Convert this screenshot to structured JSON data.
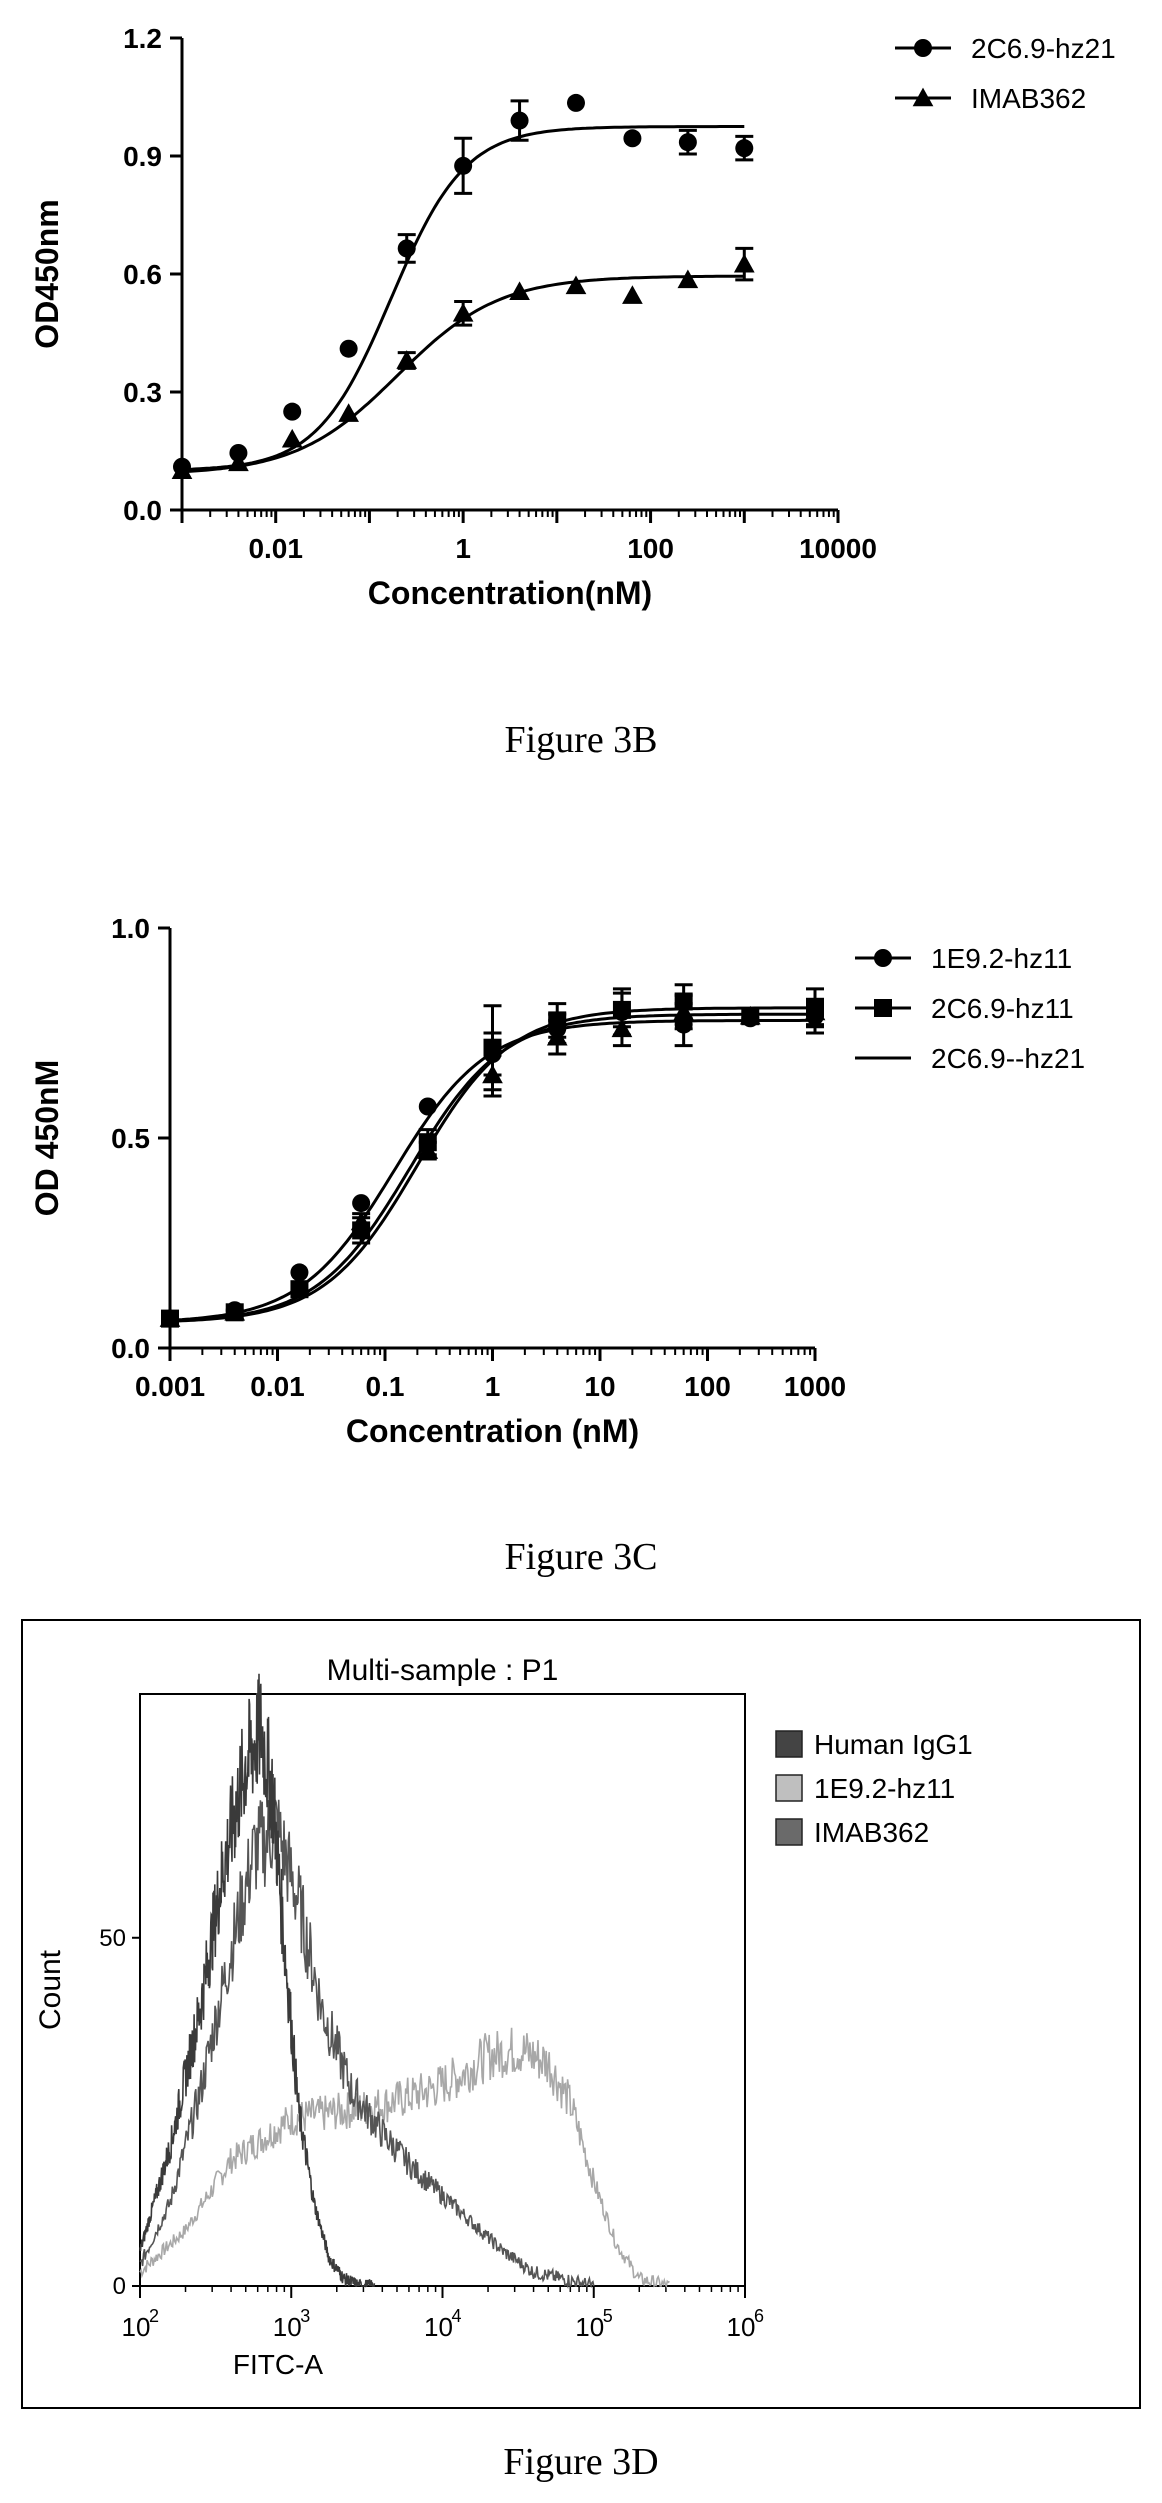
{
  "chart_data": [
    {
      "id": "fig3b",
      "type": "line",
      "caption": "Figure 3B",
      "xlabel": "Concentration(nM)",
      "ylabel": "OD450nm",
      "xscale": "log",
      "xlim": [
        0.001,
        10000
      ],
      "ylim": [
        0,
        1.2
      ],
      "xticks": [
        0.01,
        1,
        100,
        10000
      ],
      "xtick_labels": [
        "0.01",
        "1",
        "100",
        "10000"
      ],
      "yticks": [
        0,
        0.3,
        0.6,
        0.9,
        1.2
      ],
      "ytick_labels": [
        "0.0",
        "0.3",
        "0.6",
        "0.9",
        "1.2"
      ],
      "legend_position": "top-right",
      "series": [
        {
          "name": "2C6.9-hz21",
          "marker": "circle",
          "x": [
            0.001,
            0.004,
            0.015,
            0.06,
            0.25,
            1,
            4,
            16,
            64,
            250,
            1000
          ],
          "y": [
            0.11,
            0.145,
            0.25,
            0.41,
            0.665,
            0.875,
            0.99,
            1.035,
            0.945,
            0.935,
            0.92
          ],
          "err": [
            0,
            0,
            0,
            0,
            0.035,
            0.07,
            0.05,
            0,
            0,
            0.03,
            0.03
          ],
          "fit": {
            "bottom": 0.1,
            "top": 0.975,
            "ec50": 0.17,
            "hill": 1.1
          }
        },
        {
          "name": "IMAB362",
          "marker": "triangle",
          "x": [
            0.001,
            0.004,
            0.015,
            0.06,
            0.25,
            1,
            4,
            16,
            64,
            250,
            1000
          ],
          "y": [
            0.1,
            0.12,
            0.18,
            0.245,
            0.38,
            0.5,
            0.555,
            0.57,
            0.545,
            0.585,
            0.625
          ],
          "err": [
            0,
            0,
            0,
            0,
            0.02,
            0.03,
            0,
            0,
            0,
            0,
            0.04
          ],
          "fit": {
            "bottom": 0.09,
            "top": 0.595,
            "ec50": 0.2,
            "hill": 0.8
          }
        }
      ]
    },
    {
      "id": "fig3c",
      "type": "line",
      "caption": "Figure 3C",
      "xlabel": "Concentration (nM)",
      "ylabel": "OD 450nM",
      "xscale": "log",
      "xlim": [
        0.001,
        1000
      ],
      "ylim": [
        0,
        1
      ],
      "xticks": [
        0.001,
        0.01,
        0.1,
        1,
        10,
        100,
        1000
      ],
      "xtick_labels": [
        "0.001",
        "0.01",
        "0.1",
        "1",
        "10",
        "100",
        "1000"
      ],
      "yticks": [
        0,
        0.5,
        1
      ],
      "ytick_labels": [
        "0.0",
        "0.5",
        "1.0"
      ],
      "legend_position": "top-right",
      "series": [
        {
          "name": "1E9.2-hz11",
          "marker": "circle",
          "x": [
            0.001,
            0.004,
            0.016,
            0.06,
            0.25,
            1,
            4,
            16,
            60,
            250,
            1000
          ],
          "y": [
            0.07,
            0.09,
            0.18,
            0.345,
            0.575,
            0.7,
            0.76,
            0.8,
            0.77,
            0.785,
            0.79
          ],
          "err": [
            0,
            0,
            0,
            0,
            0,
            0.05,
            0.035,
            0.055,
            0.05,
            0,
            0.04
          ],
          "fit": {
            "bottom": 0.06,
            "top": 0.78,
            "ec50": 0.12,
            "hill": 1.0
          }
        },
        {
          "name": "2C6.9-hz11",
          "marker": "square",
          "x": [
            0.001,
            0.004,
            0.016,
            0.06,
            0.25,
            1,
            4,
            16,
            60,
            250,
            1000
          ],
          "y": [
            0.07,
            0.085,
            0.14,
            0.28,
            0.49,
            0.715,
            0.78,
            0.805,
            0.825,
            0.79,
            0.81
          ],
          "err": [
            0,
            0,
            0,
            0.03,
            0.03,
            0.1,
            0.04,
            0.04,
            0.04,
            0,
            0.045
          ],
          "fit": {
            "bottom": 0.06,
            "top": 0.81,
            "ec50": 0.2,
            "hill": 1.0
          }
        },
        {
          "name": "2C6.9--hz21",
          "marker": "triangle",
          "x": [
            0.001,
            0.004,
            0.016,
            0.06,
            0.25,
            1,
            4,
            16,
            60,
            250,
            1000
          ],
          "y": [
            0.07,
            0.085,
            0.15,
            0.3,
            0.47,
            0.65,
            0.74,
            0.76,
            0.8,
            0.79,
            0.8
          ],
          "err": [
            0,
            0,
            0,
            0.02,
            0.02,
            0.05,
            0.04,
            0.04,
            0.04,
            0,
            0.03
          ],
          "fit": {
            "bottom": 0.06,
            "top": 0.795,
            "ec50": 0.17,
            "hill": 1.0
          }
        }
      ]
    },
    {
      "id": "fig3d",
      "type": "area",
      "caption": "Figure 3D",
      "title": "Multi-sample : P1",
      "xlabel": "FITC-A",
      "ylabel": "Count",
      "xscale": "log",
      "xlim": [
        100,
        1000000
      ],
      "ylim": [
        0,
        85
      ],
      "xticks": [
        100,
        1000,
        10000,
        100000,
        1000000
      ],
      "xtick_labels": [
        {
          "base": "10",
          "exp": "2"
        },
        {
          "base": "10",
          "exp": "3"
        },
        {
          "base": "10",
          "exp": "4"
        },
        {
          "base": "10",
          "exp": "5"
        },
        {
          "base": "10",
          "exp": "6"
        }
      ],
      "yticks": [
        0,
        50
      ],
      "ytick_labels": [
        "0",
        "50"
      ],
      "legend_position": "right",
      "series": [
        {
          "name": "Human IgG1",
          "color": "#3a3a3a",
          "legend_color": "#444444",
          "x": [
            2.0,
            2.2,
            2.4,
            2.55,
            2.7,
            2.8,
            2.88,
            2.95,
            3.05,
            3.15,
            3.25,
            3.35,
            3.45,
            3.55
          ],
          "y": [
            5,
            20,
            40,
            60,
            75,
            80,
            70,
            50,
            25,
            12,
            4,
            1,
            0,
            0
          ]
        },
        {
          "name": "1E9.2-hz11",
          "color": "#a8a8a8",
          "legend_color": "#bfbfbf",
          "x": [
            2.0,
            2.3,
            2.6,
            3.0,
            3.3,
            3.6,
            3.9,
            4.1,
            4.3,
            4.5,
            4.7,
            4.85,
            5.0,
            5.15,
            5.3,
            5.5
          ],
          "y": [
            2,
            8,
            18,
            24,
            25,
            26,
            28,
            30,
            33,
            34,
            32,
            26,
            15,
            6,
            1,
            0
          ]
        },
        {
          "name": "IMAB362",
          "color": "#555555",
          "legend_color": "#6a6a6a",
          "x": [
            2.0,
            2.2,
            2.4,
            2.6,
            2.75,
            2.9,
            3.05,
            3.2,
            3.4,
            3.6,
            3.8,
            4.0,
            4.2,
            4.4,
            4.6,
            4.8,
            5.0
          ],
          "y": [
            3,
            12,
            28,
            48,
            62,
            66,
            55,
            40,
            28,
            22,
            17,
            13,
            9,
            5,
            2,
            1,
            0
          ]
        }
      ]
    }
  ]
}
